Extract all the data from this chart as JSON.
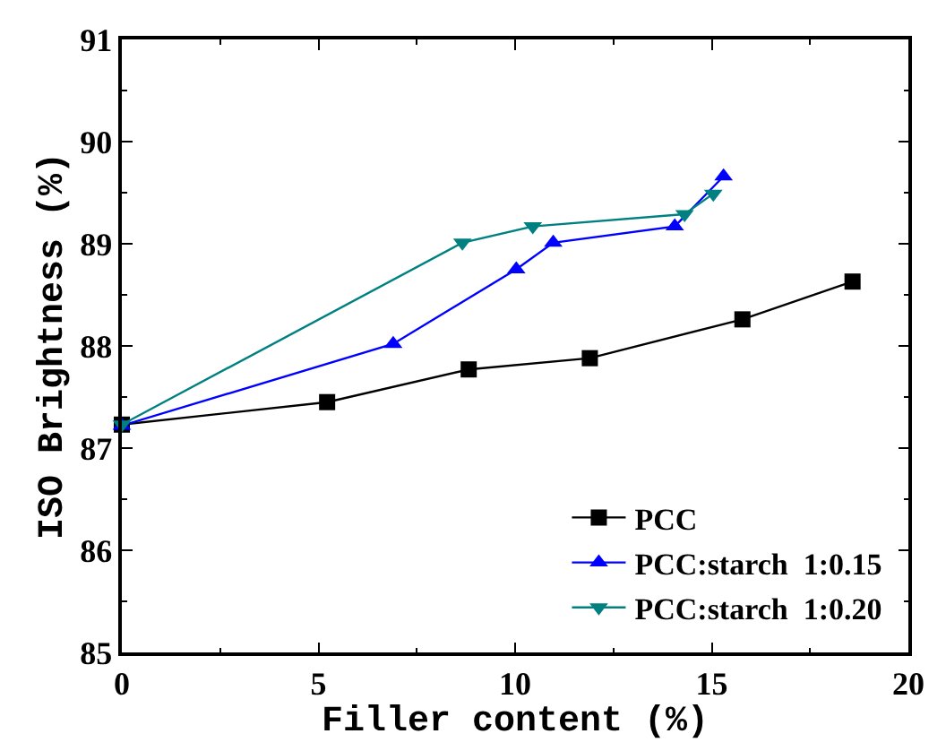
{
  "chart_data": {
    "type": "line",
    "xlabel": "Filler content (%)",
    "ylabel": "ISO Brightness (%)",
    "xlim": [
      0,
      20
    ],
    "xticks": [
      0,
      5,
      10,
      15,
      20
    ],
    "ylim": [
      85,
      91
    ],
    "yticks": [
      85,
      86,
      87,
      88,
      89,
      90,
      91
    ],
    "legend": "bottom right",
    "line_style": "solid",
    "series": [
      {
        "name": "PCC",
        "color": "#000000",
        "marker": "square",
        "x": [
          0,
          5.22,
          8.82,
          11.9,
          15.78,
          18.58
        ],
        "values": [
          87.23,
          87.45,
          87.77,
          87.88,
          88.26,
          88.63
        ]
      },
      {
        "name": "PCC:starch  1:0.15",
        "color": "#0000ff",
        "marker": "triangle",
        "x": [
          0,
          6.9,
          10.03,
          10.97,
          14.06,
          15.3
        ],
        "values": [
          87.22,
          88.02,
          88.75,
          89.01,
          89.17,
          89.66
        ]
      },
      {
        "name": "PCC:starch  1:0.20",
        "color": "#008080",
        "marker": "triangle-down",
        "x": [
          0,
          8.66,
          10.45,
          14.31,
          15.04
        ],
        "values": [
          87.23,
          89.01,
          89.17,
          89.29,
          89.49
        ]
      }
    ]
  }
}
